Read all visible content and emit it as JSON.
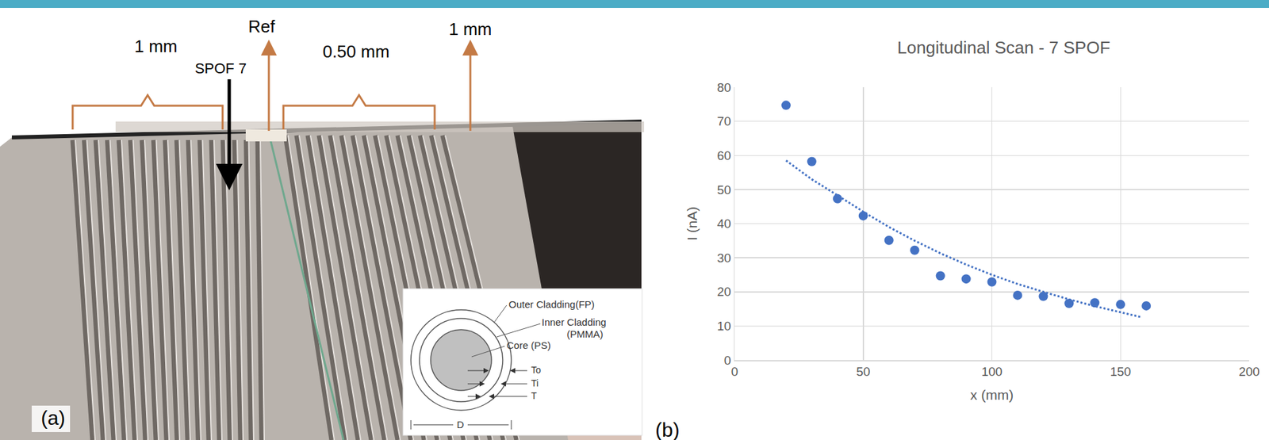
{
  "panel_labels": [
    "(a)",
    "(b)"
  ],
  "photo": {
    "left_pitch": "1 mm",
    "fiber_label": "SPOF 7",
    "reference": "Ref",
    "middle_pitch": "0.50 mm",
    "right_pitch": "1 mm",
    "inset": {
      "outer_cladding": "Outer Cladding(FP)",
      "inner_cladding": [
        "Inner Cladding",
        "(PMMA)"
      ],
      "core": "Core (PS)",
      "thicknesses": [
        "To",
        "Ti",
        "T"
      ],
      "diameter": "D"
    }
  },
  "chart_data": {
    "type": "scatter",
    "title": "Longitudinal Scan - 7 SPOF",
    "x_label": "x (mm)",
    "y_label": "I (nA)",
    "xlim": [
      0,
      200
    ],
    "xticks": [
      0,
      50,
      100,
      150,
      200
    ],
    "ylim": [
      0,
      80
    ],
    "yticks": [
      0,
      10,
      20,
      30,
      40,
      50,
      60,
      70,
      80
    ],
    "grid": true,
    "series": [
      {
        "type": "scatter",
        "marker": "circle",
        "color": "#4472c4",
        "x": [
          20,
          30,
          40,
          50,
          60,
          70,
          80,
          90,
          100,
          110,
          120,
          130,
          140,
          150,
          160
        ],
        "values": [
          74.7,
          58.2,
          47.3,
          42.3,
          35.1,
          32.2,
          24.7,
          23.8,
          22.9,
          19.0,
          18.7,
          16.6,
          16.8,
          16.3,
          15.9
        ]
      },
      {
        "type": "line",
        "line_style": "dotted",
        "color": "#4472c4",
        "x": [
          20,
          30,
          40,
          50,
          60,
          70,
          80,
          90,
          100,
          110,
          120,
          130,
          140,
          150,
          158
        ],
        "values": [
          58.5,
          53.0,
          48.3,
          43.5,
          39.0,
          35.0,
          31.3,
          28.0,
          25.0,
          22.3,
          20.0,
          17.8,
          15.8,
          14.0,
          12.6
        ]
      }
    ]
  }
}
